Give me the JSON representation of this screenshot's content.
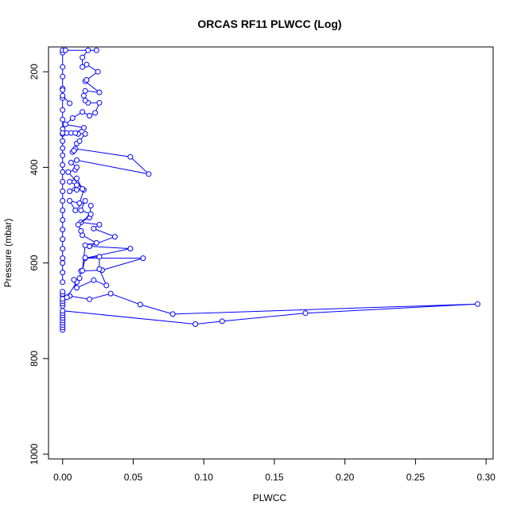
{
  "chart_data": {
    "type": "line",
    "title": "ORCAS RF11 PLWCC (Log)",
    "xlabel": "PLWCC",
    "ylabel": "Pressure (mbar)",
    "xlim": [
      -0.01,
      0.305
    ],
    "ylim": [
      1010,
      148
    ],
    "y_reversed": true,
    "x_ticks": [
      0.0,
      0.05,
      0.1,
      0.15,
      0.2,
      0.25,
      0.3
    ],
    "x_tick_labels": [
      "0.00",
      "0.05",
      "0.10",
      "0.15",
      "0.20",
      "0.25",
      "0.30"
    ],
    "y_ticks": [
      200,
      400,
      600,
      800,
      1000
    ],
    "y_tick_labels": [
      "200",
      "400",
      "600",
      "800",
      "1000"
    ],
    "grid": false,
    "color": "#0000ff",
    "series": [
      {
        "points": [
          [
            0.0,
            740
          ],
          [
            0.0,
            735
          ],
          [
            0.0,
            730
          ],
          [
            0.0,
            725
          ],
          [
            0.0,
            720
          ],
          [
            0.0,
            715
          ],
          [
            0.0,
            710
          ],
          [
            0.0,
            705
          ],
          [
            0.0,
            700
          ],
          [
            0.094,
            728
          ],
          [
            0.113,
            722
          ],
          [
            0.172,
            705
          ],
          [
            0.294,
            686
          ],
          [
            0.078,
            707
          ],
          [
            0.055,
            687
          ],
          [
            0.034,
            664
          ],
          [
            0.019,
            676
          ],
          [
            0.005,
            669
          ],
          [
            0.0,
            668
          ],
          [
            0.0,
            665
          ],
          [
            0.0,
            660
          ]
        ]
      },
      {
        "points": [
          [
            0.0,
            690
          ],
          [
            0.0,
            685
          ],
          [
            0.0,
            680
          ],
          [
            0.0,
            675
          ],
          [
            0.003,
            672
          ],
          [
            0.01,
            640
          ],
          [
            0.012,
            632
          ],
          [
            0.013,
            617
          ],
          [
            0.028,
            615
          ],
          [
            0.057,
            590
          ],
          [
            0.016,
            590
          ],
          [
            0.048,
            570
          ],
          [
            0.019,
            565
          ],
          [
            0.037,
            545
          ],
          [
            0.022,
            528
          ],
          [
            0.026,
            520
          ],
          [
            0.013,
            515
          ],
          [
            0.019,
            505
          ],
          [
            0.02,
            480
          ]
        ]
      },
      {
        "points": [
          [
            0.0,
            640
          ],
          [
            0.0,
            620
          ],
          [
            0.0,
            600
          ],
          [
            0.0,
            590
          ],
          [
            0.0,
            570
          ],
          [
            0.0,
            550
          ],
          [
            0.0,
            530
          ],
          [
            0.0,
            510
          ],
          [
            0.0,
            490
          ],
          [
            0.0,
            470
          ],
          [
            0.0,
            450
          ],
          [
            0.0,
            430
          ],
          [
            0.0,
            410
          ],
          [
            0.0,
            395
          ],
          [
            0.0,
            375
          ],
          [
            0.0,
            360
          ],
          [
            0.0,
            345
          ],
          [
            0.0,
            330
          ],
          [
            0.0,
            320
          ],
          [
            0.0,
            300
          ],
          [
            0.0,
            280
          ],
          [
            0.0,
            255
          ],
          [
            0.0,
            235
          ],
          [
            0.0,
            210
          ],
          [
            0.0,
            190
          ],
          [
            0.0,
            160
          ],
          [
            0.0,
            155
          ]
        ]
      },
      {
        "points": [
          [
            0.008,
            635
          ],
          [
            0.01,
            652
          ],
          [
            0.022,
            636
          ],
          [
            0.031,
            647
          ],
          [
            0.026,
            613
          ],
          [
            0.026,
            587
          ],
          [
            0.016,
            589
          ],
          [
            0.014,
            616
          ],
          [
            0.016,
            563
          ],
          [
            0.024,
            558
          ],
          [
            0.014,
            542
          ],
          [
            0.013,
            533
          ],
          [
            0.011,
            520
          ],
          [
            0.02,
            498
          ],
          [
            0.013,
            490
          ],
          [
            0.016,
            470
          ],
          [
            0.009,
            490
          ],
          [
            0.005,
            470
          ],
          [
            0.012,
            475
          ],
          [
            0.015,
            447
          ],
          [
            0.01,
            447
          ],
          [
            0.005,
            450
          ],
          [
            0.01,
            437
          ],
          [
            0.005,
            430
          ],
          [
            0.01,
            423
          ],
          [
            0.014,
            445
          ],
          [
            0.004,
            410
          ],
          [
            0.009,
            405
          ],
          [
            0.01,
            400
          ],
          [
            0.006,
            390
          ],
          [
            0.01,
            385
          ],
          [
            0.061,
            414
          ],
          [
            0.048,
            378
          ],
          [
            0.009,
            361
          ],
          [
            0.007,
            368
          ],
          [
            0.008,
            365
          ],
          [
            0.01,
            350
          ],
          [
            0.012,
            345
          ],
          [
            0.016,
            330
          ],
          [
            0.011,
            330
          ],
          [
            0.0,
            328
          ],
          [
            0.003,
            328
          ],
          [
            0.006,
            328
          ],
          [
            0.009,
            328
          ],
          [
            0.015,
            317
          ],
          [
            0.002,
            310
          ],
          [
            0.007,
            297
          ],
          [
            0.014,
            284
          ],
          [
            0.019,
            292
          ],
          [
            0.023,
            286
          ],
          [
            0.026,
            265
          ],
          [
            0.018,
            265
          ],
          [
            0.016,
            260
          ],
          [
            0.015,
            250
          ],
          [
            0.016,
            240
          ],
          [
            0.026,
            243
          ],
          [
            0.016,
            220
          ],
          [
            0.017,
            217
          ],
          [
            0.025,
            200
          ],
          [
            0.017,
            185
          ],
          [
            0.014,
            190
          ],
          [
            0.014,
            170
          ],
          [
            0.018,
            155
          ],
          [
            0.024,
            155
          ],
          [
            0.002,
            155
          ]
        ]
      },
      {
        "points": [
          [
            0.005,
            266
          ],
          [
            0.0,
            250
          ],
          [
            0.0,
            238
          ]
        ]
      }
    ]
  }
}
